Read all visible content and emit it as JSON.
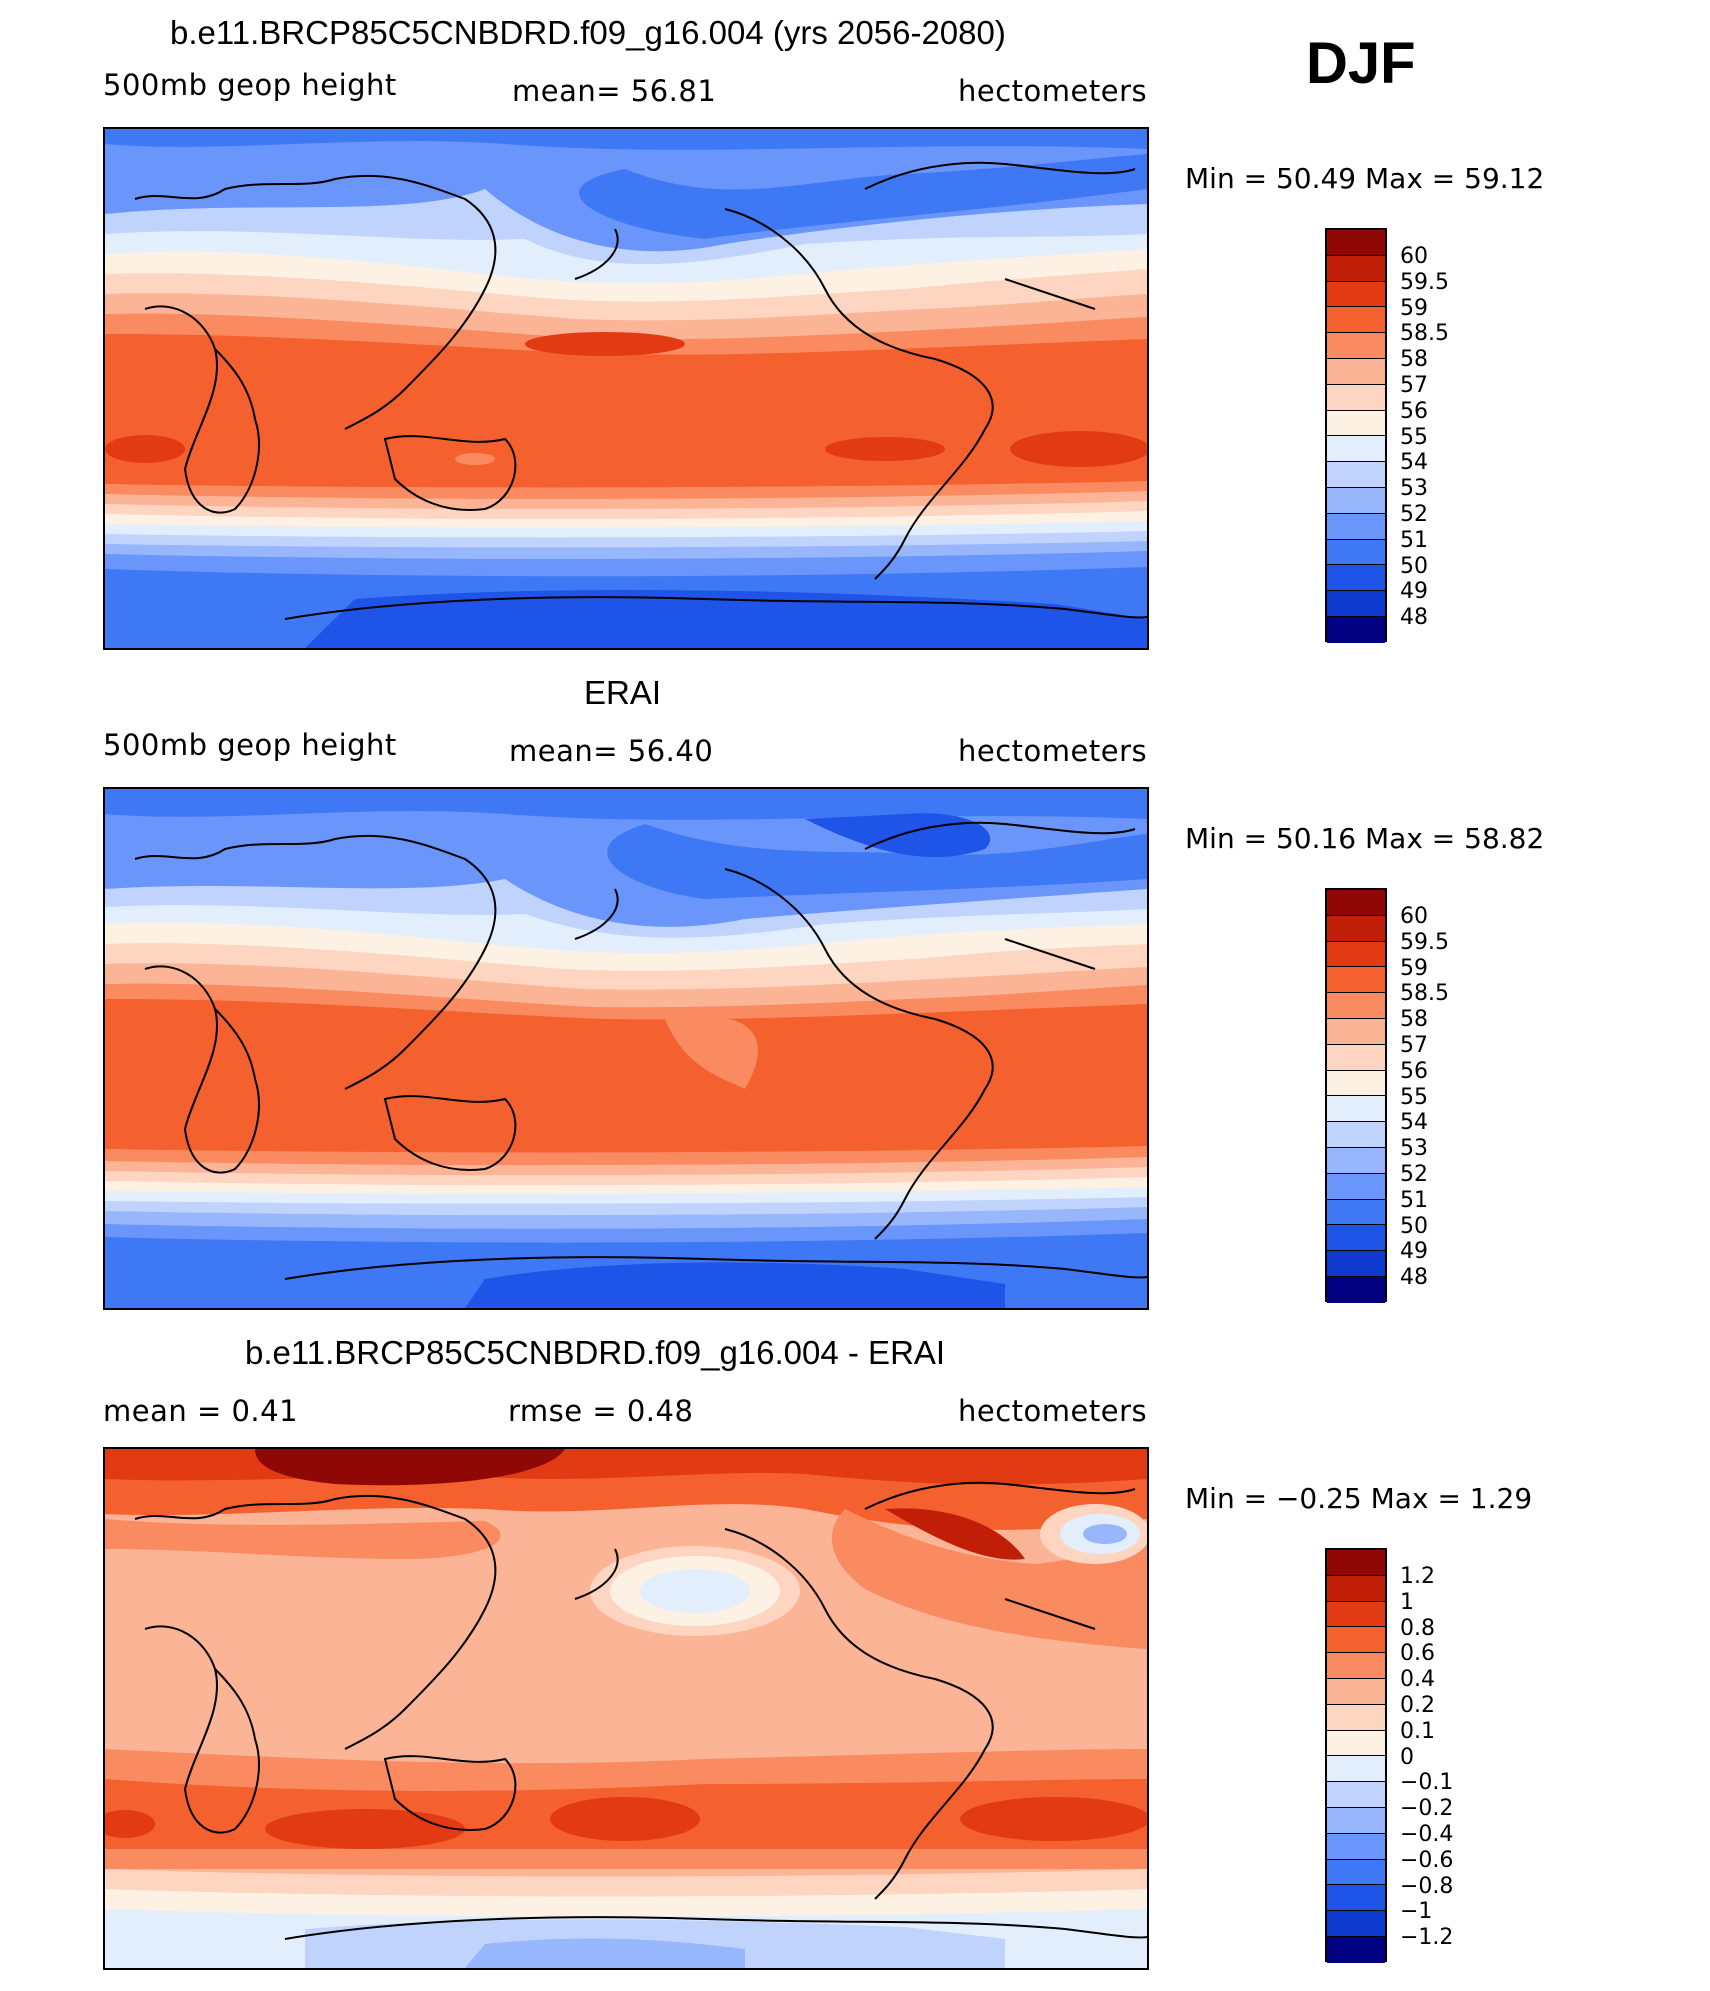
{
  "season": "DJF",
  "colors": {
    "abs_scale": [
      "#000080",
      "#0a25a8",
      "#0f3ad0",
      "#1e55e8",
      "#3f78f5",
      "#6a96fb",
      "#98b6fc",
      "#bfd3fd",
      "#e3eefd",
      "#fdf1e3",
      "#fdd5c0",
      "#fcb496",
      "#fa8a5f",
      "#f4612e",
      "#e23a13",
      "#c01e07",
      "#8f0805"
    ],
    "diff_scale": [
      "#000080",
      "#0a25a8",
      "#0f3ad0",
      "#1e55e8",
      "#3f78f5",
      "#6a96fb",
      "#98b6fc",
      "#bfd3fd",
      "#e3eefd",
      "#fdf1e3",
      "#fdd5c0",
      "#fcb496",
      "#fa8a5f",
      "#f4612e",
      "#e23a13",
      "#c01e07",
      "#8f0805"
    ]
  },
  "panels": [
    {
      "title": "b.e11.BRCP85C5CNBDRD.f09_g16.004 (yrs 2056-2080)",
      "left_label": "500mb geop height",
      "mid_label": "mean=   56.81",
      "right_label": "hectometers",
      "minmax": "Min =    50.49  Max =    59.12",
      "colorbar_labels": [
        "60",
        "59.5",
        "59",
        "58.5",
        "58",
        "57",
        "56",
        "55",
        "54",
        "53",
        "52",
        "51",
        "50",
        "49",
        "48"
      ]
    },
    {
      "title": "ERAI",
      "left_label": "500mb geop height",
      "mid_label": "mean=   56.40",
      "right_label": "hectometers",
      "minmax": "Min =    50.16  Max =    58.82",
      "colorbar_labels": [
        "60",
        "59.5",
        "59",
        "58.5",
        "58",
        "57",
        "56",
        "55",
        "54",
        "53",
        "52",
        "51",
        "50",
        "49",
        "48"
      ]
    },
    {
      "title": "b.e11.BRCP85C5CNBDRD.f09_g16.004 - ERAI",
      "left_label": "mean =     0.41",
      "mid_label": "rmse =     0.48",
      "right_label": "hectometers",
      "minmax": "Min =   −0.25  Max =     1.29",
      "colorbar_labels": [
        "1.2",
        "1",
        "0.8",
        "0.6",
        "0.4",
        "0.2",
        "0.1",
        "0",
        "−0.1",
        "−0.2",
        "−0.4",
        "−0.6",
        "−0.8",
        "−1",
        "−1.2"
      ]
    }
  ]
}
